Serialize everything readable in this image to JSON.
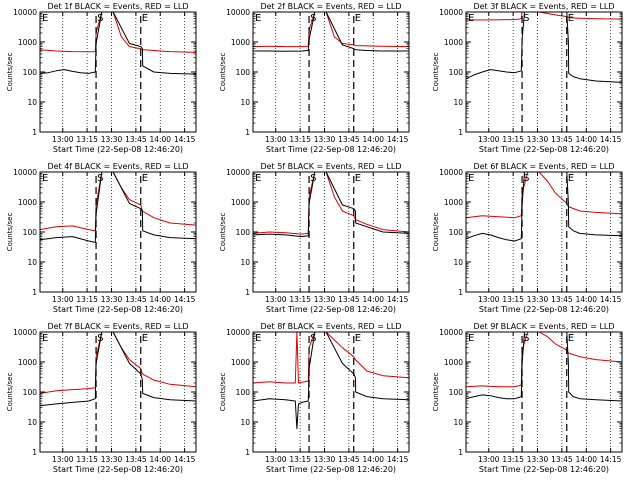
{
  "figure": {
    "xlabel": "Start Time (22-Sep-08 12:46:20)",
    "ylabel": "Counts/sec",
    "series_colors": {
      "events": "#000000",
      "lld": "#dd0000"
    },
    "x_ticks": [
      "13:00",
      "13:15",
      "13:30",
      "13:45",
      "14:00",
      "14:15"
    ],
    "y_ticks": [
      "1",
      "10",
      "100",
      "1000",
      "10000"
    ]
  },
  "chart_data": [
    {
      "type": "line",
      "title": "Det 1f BLACK = Events, RED = LLD",
      "xlabel": "Start Time (22-Sep-08 12:46:20)",
      "ylabel": "Counts/sec",
      "x_range_minutes_from_start": [
        0,
        96
      ],
      "y_scale": "log",
      "ylim": [
        1,
        10000
      ],
      "markers": [
        "E",
        "S",
        "E"
      ],
      "marker_times": [
        "12:46",
        "13:21",
        "13:49"
      ],
      "series": [
        {
          "name": "BLACK",
          "x": [
            0,
            5,
            10,
            15,
            20,
            25,
            30,
            34,
            34.5,
            38,
            45,
            55,
            62,
            63,
            63.2,
            70,
            80,
            96
          ],
          "y": [
            90,
            95,
            110,
            120,
            105,
            95,
            90,
            100,
            900,
            10000,
            10000,
            900,
            700,
            600,
            160,
            100,
            90,
            85
          ]
        },
        {
          "name": "RED",
          "x": [
            0,
            10,
            20,
            30,
            34,
            34.5,
            38,
            45,
            50,
            55,
            62,
            63,
            70,
            80,
            96
          ],
          "y": [
            550,
            500,
            480,
            470,
            480,
            2000,
            10000,
            10000,
            1500,
            700,
            600,
            560,
            520,
            480,
            450
          ]
        }
      ]
    },
    {
      "type": "line",
      "title": "Det 2f BLACK = Events, RED = LLD",
      "xlabel": "Start Time (22-Sep-08 12:46:20)",
      "ylabel": "Counts/sec",
      "x_range_minutes_from_start": [
        0,
        96
      ],
      "y_scale": "log",
      "ylim": [
        1,
        10000
      ],
      "markers": [
        "E",
        "S",
        "E"
      ],
      "marker_times": [
        "12:46",
        "13:21",
        "13:49"
      ],
      "series": [
        {
          "name": "BLACK",
          "x": [
            0,
            10,
            20,
            30,
            34,
            34.5,
            38,
            45,
            55,
            62,
            63,
            63.2,
            70,
            80,
            96
          ],
          "y": [
            500,
            500,
            490,
            500,
            520,
            1200,
            10000,
            10000,
            800,
            600,
            560,
            550,
            520,
            500,
            500
          ]
        },
        {
          "name": "RED",
          "x": [
            0,
            10,
            20,
            30,
            34,
            34.5,
            38,
            45,
            50,
            55,
            62,
            63,
            70,
            80,
            96
          ],
          "y": [
            700,
            720,
            700,
            700,
            720,
            2500,
            10000,
            10000,
            1500,
            900,
            800,
            760,
            740,
            720,
            700
          ]
        }
      ]
    },
    {
      "type": "line",
      "title": "Det 3f BLACK = Events, RED = LLD",
      "xlabel": "Start Time (22-Sep-08 12:46:20)",
      "ylabel": "Counts/sec",
      "x_range_minutes_from_start": [
        0,
        96
      ],
      "y_scale": "log",
      "ylim": [
        1,
        10000
      ],
      "markers": [
        "E",
        "S",
        "E"
      ],
      "marker_times": [
        "12:46",
        "13:21",
        "13:49"
      ],
      "series": [
        {
          "name": "BLACK",
          "x": [
            0,
            5,
            10,
            15,
            20,
            25,
            30,
            34,
            34.5,
            36,
            62,
            63,
            63.2,
            66,
            70,
            80,
            96
          ],
          "y": [
            60,
            80,
            100,
            120,
            110,
            100,
            95,
            110,
            1200,
            10000,
            10000,
            1000,
            90,
            70,
            60,
            50,
            45
          ]
        },
        {
          "name": "RED",
          "x": [
            0,
            10,
            20,
            30,
            34,
            34.5,
            38,
            45,
            55,
            62,
            63,
            70,
            80,
            96
          ],
          "y": [
            5500,
            5400,
            5500,
            5600,
            6000,
            10000,
            10000,
            10000,
            8000,
            7000,
            6500,
            6200,
            6000,
            5800
          ]
        }
      ]
    },
    {
      "type": "line",
      "title": "Det 4f BLACK = Events, RED = LLD",
      "xlabel": "Start Time (22-Sep-08 12:46:20)",
      "ylabel": "Counts/sec",
      "x_range_minutes_from_start": [
        0,
        96
      ],
      "y_scale": "log",
      "ylim": [
        1,
        10000
      ],
      "markers": [
        "E",
        "S",
        "E"
      ],
      "marker_times": [
        "12:46",
        "13:21",
        "13:49"
      ],
      "series": [
        {
          "name": "BLACK",
          "x": [
            0,
            10,
            20,
            30,
            34,
            34.5,
            38,
            45,
            55,
            62,
            63,
            63.2,
            70,
            80,
            96
          ],
          "y": [
            55,
            65,
            70,
            50,
            45,
            400,
            10000,
            10000,
            900,
            600,
            500,
            110,
            80,
            65,
            60
          ]
        },
        {
          "name": "RED",
          "x": [
            0,
            10,
            20,
            30,
            34,
            34.5,
            38,
            45,
            50,
            55,
            62,
            63,
            70,
            80,
            96
          ],
          "y": [
            120,
            150,
            160,
            120,
            110,
            800,
            10000,
            10000,
            3000,
            1200,
            800,
            500,
            300,
            200,
            170
          ]
        }
      ]
    },
    {
      "type": "line",
      "title": "Det 5f BLACK = Events, RED = LLD",
      "xlabel": "Start Time (22-Sep-08 12:46:20)",
      "ylabel": "Counts/sec",
      "x_range_minutes_from_start": [
        0,
        96
      ],
      "y_scale": "log",
      "ylim": [
        1,
        10000
      ],
      "markers": [
        "E",
        "S",
        "E"
      ],
      "marker_times": [
        "12:46",
        "13:21",
        "13:49"
      ],
      "series": [
        {
          "name": "BLACK",
          "x": [
            0,
            10,
            20,
            30,
            34,
            34.5,
            38,
            45,
            55,
            62,
            63,
            63.2,
            70,
            80,
            96
          ],
          "y": [
            80,
            85,
            80,
            70,
            75,
            900,
            10000,
            10000,
            800,
            600,
            500,
            200,
            150,
            100,
            90
          ]
        },
        {
          "name": "RED",
          "x": [
            0,
            10,
            20,
            30,
            34,
            34.5,
            38,
            45,
            50,
            55,
            62,
            63,
            70,
            80,
            96
          ],
          "y": [
            90,
            100,
            95,
            85,
            90,
            1500,
            10000,
            10000,
            1500,
            500,
            350,
            260,
            180,
            120,
            100
          ]
        }
      ]
    },
    {
      "type": "line",
      "title": "Det 6f BLACK = Events, RED = LLD",
      "xlabel": "Start Time (22-Sep-08 12:46:20)",
      "ylabel": "Counts/sec",
      "x_range_minutes_from_start": [
        0,
        96
      ],
      "y_scale": "log",
      "ylim": [
        1,
        10000
      ],
      "markers": [
        "E",
        "S",
        "E"
      ],
      "marker_times": [
        "12:46",
        "13:21",
        "13:49"
      ],
      "series": [
        {
          "name": "BLACK",
          "x": [
            0,
            5,
            10,
            15,
            20,
            25,
            30,
            34,
            34.5,
            36,
            62,
            63,
            63.2,
            66,
            70,
            80,
            96
          ],
          "y": [
            60,
            75,
            90,
            80,
            65,
            55,
            50,
            60,
            800,
            10000,
            10000,
            900,
            150,
            110,
            90,
            80,
            75
          ]
        },
        {
          "name": "RED",
          "x": [
            0,
            10,
            20,
            30,
            34,
            34.5,
            38,
            45,
            50,
            55,
            62,
            63,
            70,
            80,
            96
          ],
          "y": [
            300,
            350,
            320,
            300,
            350,
            2000,
            10000,
            10000,
            5000,
            2000,
            900,
            700,
            500,
            450,
            400
          ]
        }
      ]
    },
    {
      "type": "line",
      "title": "Det 7f BLACK = Events, RED = LLD",
      "xlabel": "Start Time (22-Sep-08 12:46:20)",
      "ylabel": "Counts/sec",
      "x_range_minutes_from_start": [
        0,
        96
      ],
      "y_scale": "log",
      "ylim": [
        1,
        10000
      ],
      "markers": [
        "E",
        "S",
        "E"
      ],
      "marker_times": [
        "12:46",
        "13:21",
        "13:49"
      ],
      "series": [
        {
          "name": "BLACK",
          "x": [
            0,
            10,
            20,
            30,
            34,
            34.5,
            38,
            45,
            55,
            62,
            63,
            63.2,
            70,
            80,
            96
          ],
          "y": [
            35,
            40,
            45,
            50,
            60,
            900,
            10000,
            10000,
            900,
            400,
            250,
            90,
            65,
            55,
            50
          ]
        },
        {
          "name": "RED",
          "x": [
            0,
            10,
            20,
            30,
            34,
            34.5,
            38,
            45,
            50,
            55,
            62,
            63,
            70,
            80,
            96
          ],
          "y": [
            90,
            110,
            120,
            130,
            140,
            1500,
            10000,
            10000,
            3000,
            1200,
            600,
            400,
            250,
            180,
            150
          ]
        }
      ]
    },
    {
      "type": "line",
      "title": "Det 8f BLACK = Events, RED = LLD",
      "xlabel": "Start Time (22-Sep-08 12:46:20)",
      "ylabel": "Counts/sec",
      "x_range_minutes_from_start": [
        0,
        96
      ],
      "y_scale": "log",
      "ylim": [
        1,
        10000
      ],
      "markers": [
        "E",
        "S",
        "E"
      ],
      "marker_times": [
        "12:46",
        "13:21",
        "13:49"
      ],
      "series": [
        {
          "name": "BLACK",
          "x": [
            0,
            10,
            20,
            26,
            27,
            28,
            30,
            34,
            34.5,
            38,
            45,
            55,
            62,
            63,
            63.2,
            70,
            80,
            96
          ],
          "y": [
            50,
            60,
            55,
            50,
            6,
            40,
            45,
            50,
            600,
            10000,
            10000,
            900,
            400,
            300,
            100,
            70,
            60,
            55
          ]
        },
        {
          "name": "RED",
          "x": [
            0,
            10,
            20,
            26,
            27,
            28,
            30,
            34,
            34.5,
            38,
            45,
            55,
            62,
            63,
            70,
            80,
            96
          ],
          "y": [
            200,
            220,
            200,
            200,
            10000,
            200,
            210,
            230,
            3000,
            10000,
            10000,
            3000,
            1500,
            1200,
            500,
            350,
            300
          ]
        }
      ]
    },
    {
      "type": "line",
      "title": "Det 9f BLACK = Events, RED = LLD",
      "xlabel": "Start Time (22-Sep-08 12:46:20)",
      "ylabel": "Counts/sec",
      "x_range_minutes_from_start": [
        0,
        96
      ],
      "y_scale": "log",
      "ylim": [
        1,
        10000
      ],
      "markers": [
        "E",
        "S",
        "E"
      ],
      "marker_times": [
        "12:46",
        "13:21",
        "13:49"
      ],
      "series": [
        {
          "name": "BLACK",
          "x": [
            0,
            5,
            10,
            15,
            20,
            25,
            30,
            34,
            34.5,
            36,
            62,
            63,
            63.2,
            66,
            70,
            80,
            96
          ],
          "y": [
            60,
            70,
            80,
            75,
            65,
            60,
            60,
            70,
            900,
            10000,
            10000,
            900,
            100,
            70,
            60,
            55,
            50
          ]
        },
        {
          "name": "RED",
          "x": [
            0,
            10,
            20,
            30,
            34,
            34.5,
            38,
            45,
            50,
            55,
            62,
            63,
            70,
            80,
            96
          ],
          "y": [
            150,
            160,
            150,
            150,
            170,
            2500,
            10000,
            10000,
            7000,
            4000,
            2500,
            2000,
            1500,
            1200,
            1000
          ]
        }
      ]
    }
  ]
}
